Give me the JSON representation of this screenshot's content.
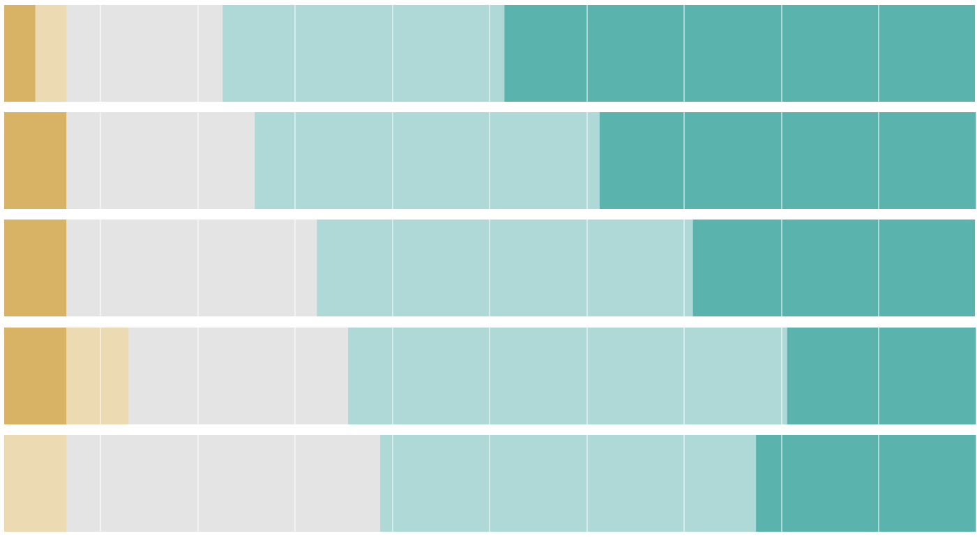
{
  "chart_data": {
    "type": "bar",
    "orientation": "horizontal",
    "stacked": true,
    "normalized": true,
    "xlim": [
      0,
      1
    ],
    "grid": true,
    "legend": "none",
    "title": "",
    "xlabel": "",
    "ylabel": "",
    "categories": [
      "",
      "",
      "",
      "",
      ""
    ],
    "series": [
      {
        "color": "#d9b365",
        "values": [
          0.032,
          0.064,
          0.064,
          0.064,
          0.0
        ]
      },
      {
        "color": "#ebdab2",
        "values": [
          0.032,
          0.0,
          0.0,
          0.064,
          0.064
        ]
      },
      {
        "color": "#e4e4e4",
        "values": [
          0.161,
          0.194,
          0.258,
          0.226,
          0.323
        ]
      },
      {
        "color": "#aed9d7",
        "values": [
          0.29,
          0.355,
          0.387,
          0.452,
          0.387
        ]
      },
      {
        "color": "#5bb3ad",
        "values": [
          0.484,
          0.387,
          0.29,
          0.194,
          0.226
        ]
      }
    ]
  }
}
